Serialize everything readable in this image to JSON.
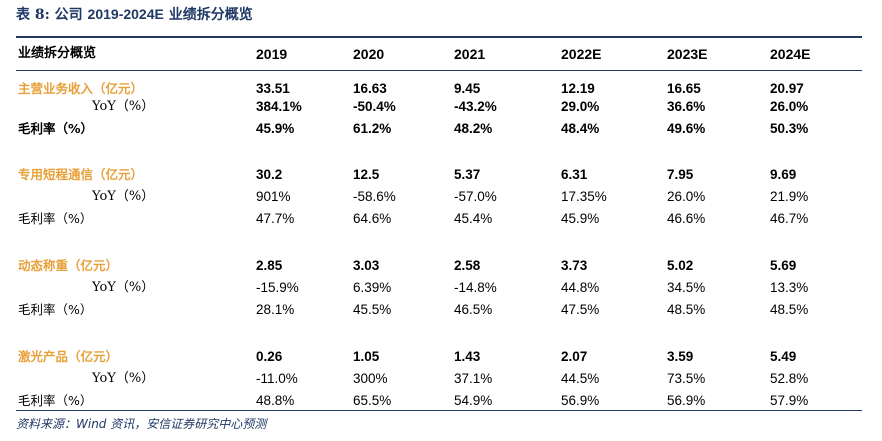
{
  "title": {
    "prefix": "表 8:",
    "company": "公司",
    "range": "2019-2024E",
    "suffix": "业绩拆分概览"
  },
  "header": {
    "label": "业绩拆分概览",
    "years": [
      "2019",
      "2020",
      "2021",
      "2022E",
      "2023E",
      "2024E"
    ]
  },
  "rows": [
    {
      "label": "主营业务收入（亿元）",
      "type": "seg",
      "bold": true,
      "values": [
        "33.51",
        "16.63",
        "9.45",
        "12.19",
        "16.65",
        "20.97"
      ]
    },
    {
      "label": "YoY（%）",
      "type": "yoy",
      "bold": true,
      "values": [
        "384.1%",
        "-50.4%",
        "-43.2%",
        "29.0%",
        "36.6%",
        "26.0%"
      ]
    },
    {
      "label": "毛利率（%）",
      "type": "margin",
      "bold": true,
      "values": [
        "45.9%",
        "61.2%",
        "48.2%",
        "48.4%",
        "49.6%",
        "50.3%"
      ]
    },
    {
      "label": "专用短程通信（亿元）",
      "type": "seg",
      "bold": true,
      "values": [
        "30.2",
        "12.5",
        "5.37",
        "6.31",
        "7.95",
        "9.69"
      ]
    },
    {
      "label": "YoY（%）",
      "type": "yoy",
      "bold": false,
      "values": [
        "901%",
        "-58.6%",
        "-57.0%",
        "17.35%",
        "26.0%",
        "21.9%"
      ]
    },
    {
      "label": "毛利率（%）",
      "type": "margin",
      "bold": false,
      "values": [
        "47.7%",
        "64.6%",
        "45.4%",
        "45.9%",
        "46.6%",
        "46.7%"
      ]
    },
    {
      "label": "动态称重（亿元）",
      "type": "seg",
      "bold": true,
      "values": [
        "2.85",
        "3.03",
        "2.58",
        "3.73",
        "5.02",
        "5.69"
      ]
    },
    {
      "label": "YoY（%）",
      "type": "yoy",
      "bold": false,
      "values": [
        "-15.9%",
        "6.39%",
        "-14.8%",
        "44.8%",
        "34.5%",
        "13.3%"
      ]
    },
    {
      "label": "毛利率（%）",
      "type": "margin",
      "bold": false,
      "values": [
        "28.1%",
        "45.5%",
        "46.5%",
        "47.5%",
        "48.5%",
        "48.5%"
      ]
    },
    {
      "label": "激光产品（亿元）",
      "type": "seg",
      "bold": true,
      "values": [
        "0.26",
        "1.05",
        "1.43",
        "2.07",
        "3.59",
        "5.49"
      ]
    },
    {
      "label": "YoY（%）",
      "type": "yoy",
      "bold": false,
      "values": [
        "-11.0%",
        "300%",
        "37.1%",
        "44.5%",
        "73.5%",
        "52.8%"
      ]
    },
    {
      "label": "毛利率（%）",
      "type": "margin",
      "bold": false,
      "values": [
        "48.8%",
        "65.5%",
        "54.9%",
        "56.9%",
        "56.9%",
        "57.9%"
      ]
    }
  ],
  "source": "资料来源：Wind 资讯，安信证券研究中心预测",
  "colors": {
    "navy": "#1f3864",
    "segment_label": "#e8a13a"
  }
}
